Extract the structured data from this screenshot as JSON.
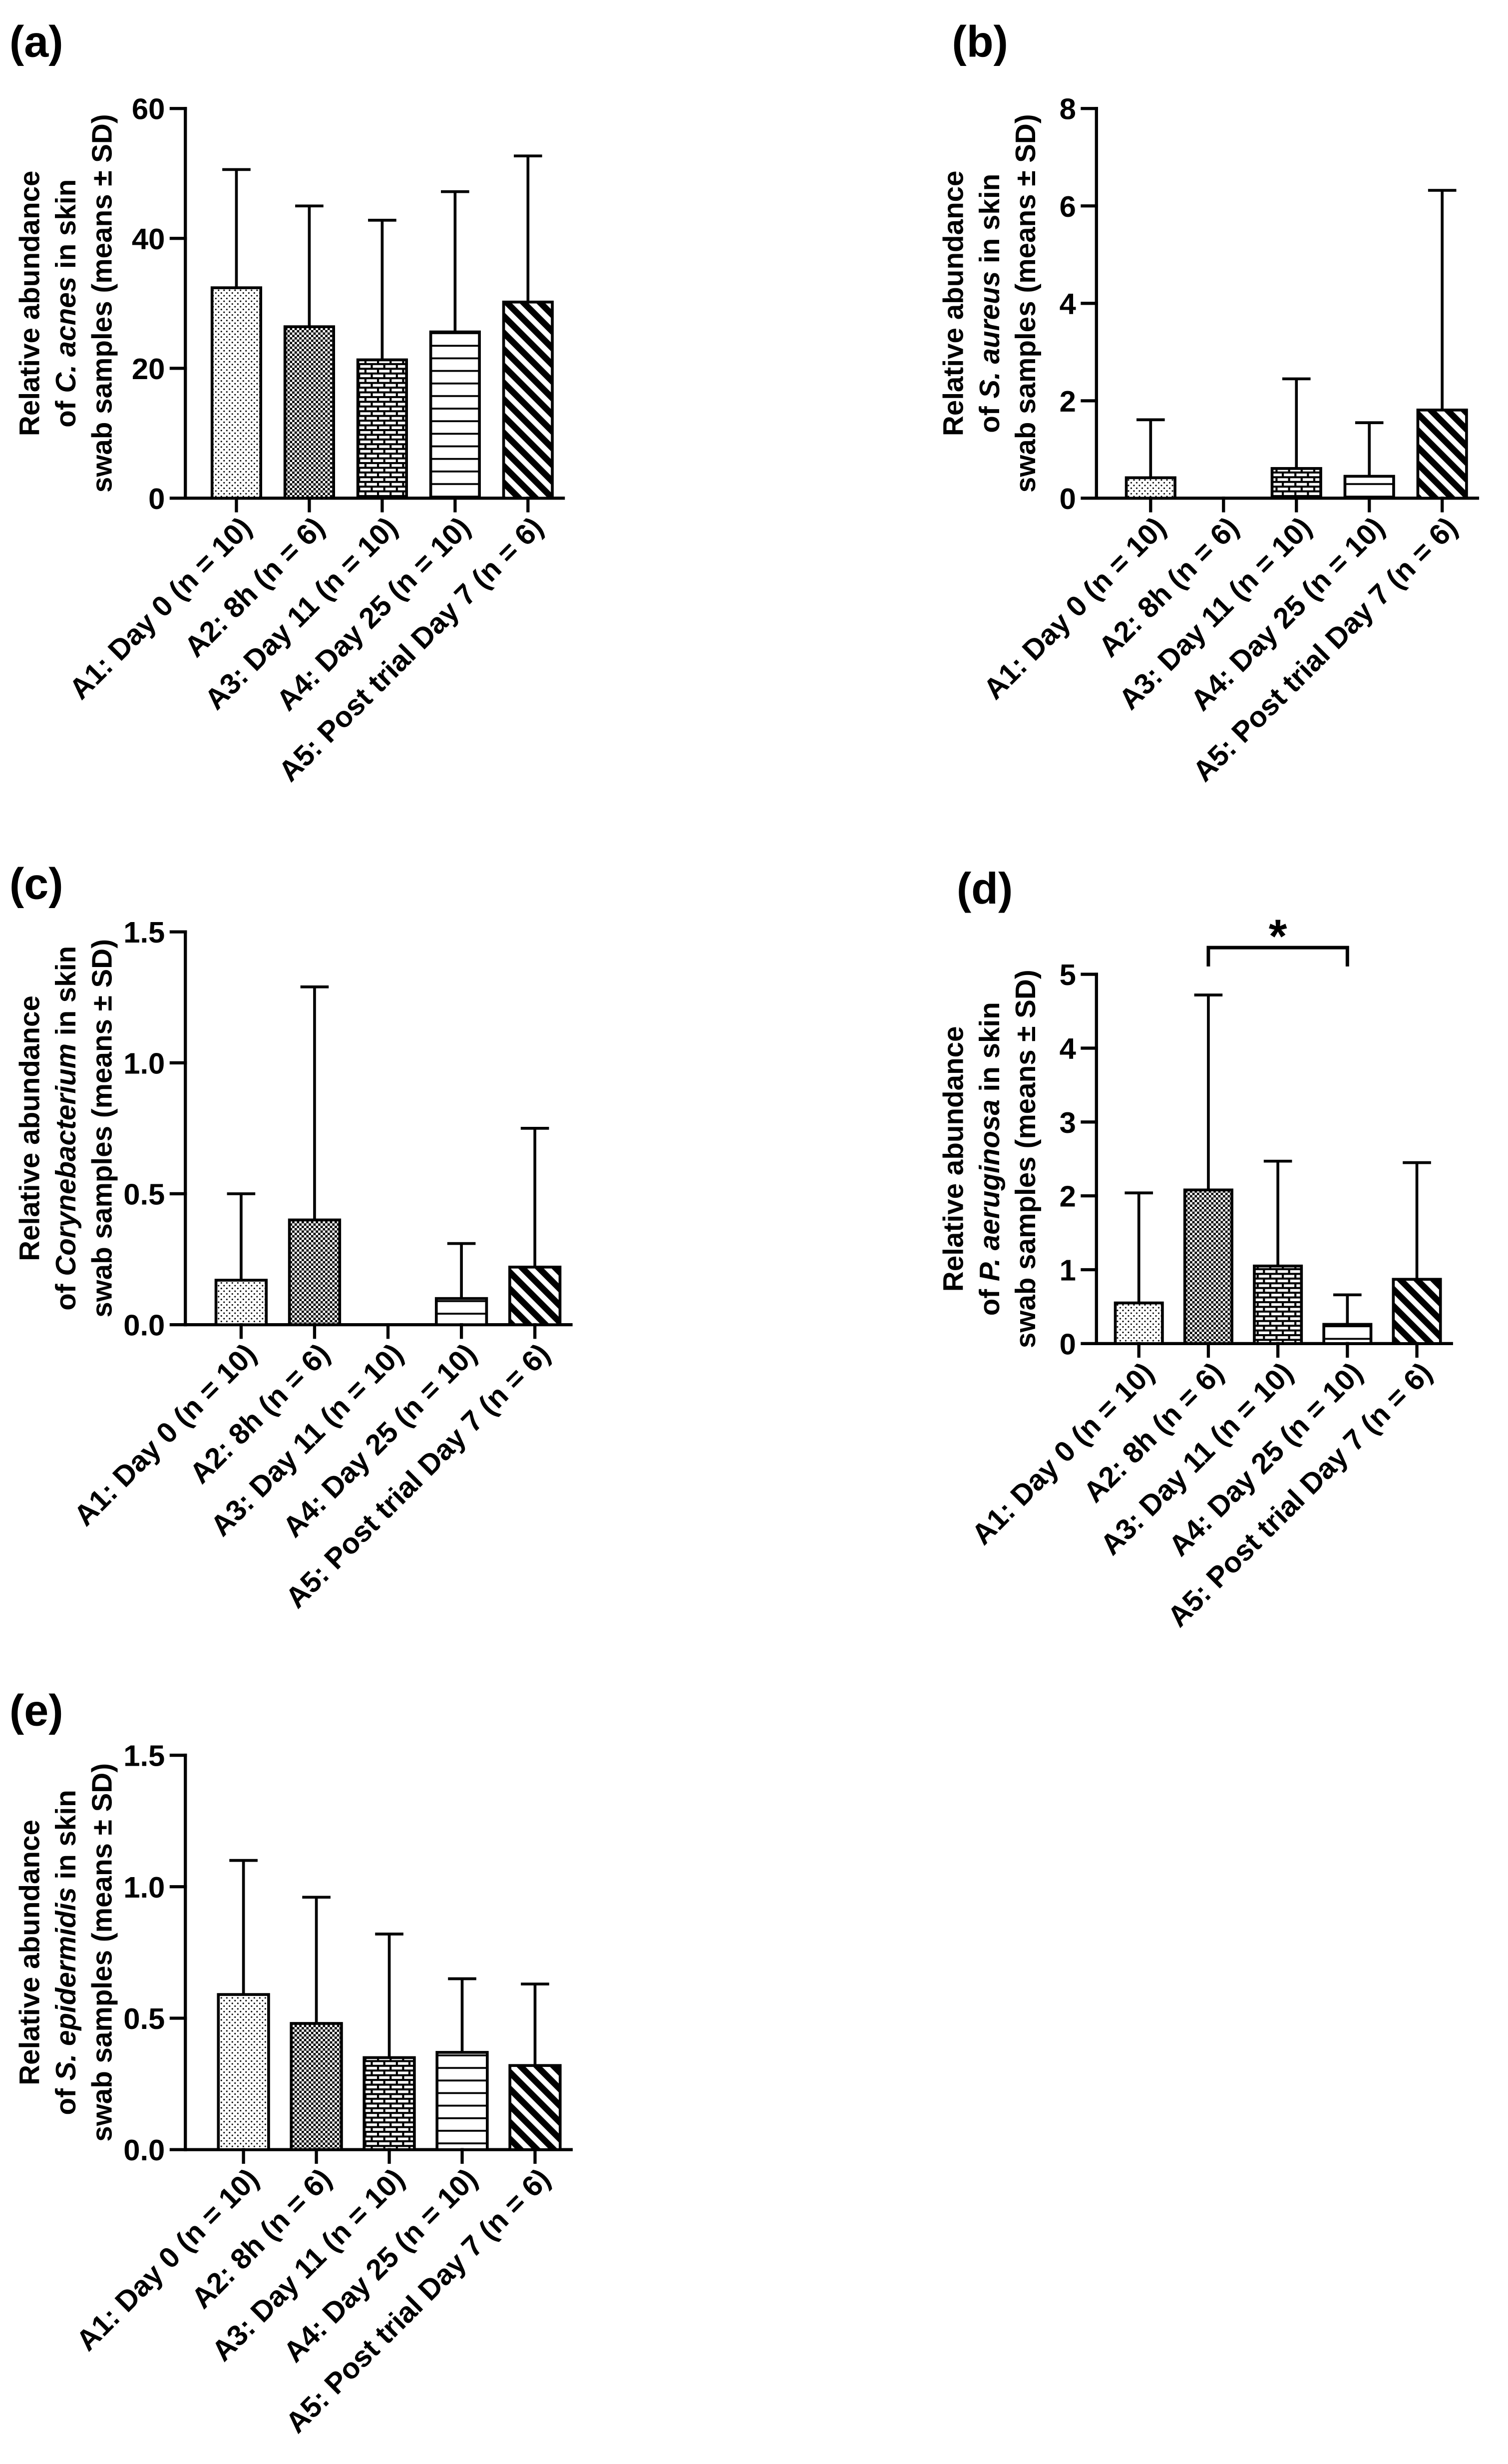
{
  "chart_data": [
    {
      "panel": "(a)",
      "type": "bar",
      "categories": [
        "A1: Day 0 (n = 10)",
        "A2: 8h (n = 6)",
        "A3: Day 11 (n = 10)",
        "A4: Day 25 (n = 10)",
        "A5: Post trial Day 7 (n = 6)"
      ],
      "values": [
        32.4,
        26.4,
        21.3,
        25.6,
        30.2
      ],
      "sd": [
        18.2,
        18.6,
        21.5,
        21.6,
        22.5
      ],
      "ylabel": [
        [
          {
            "text": "Relative abundance"
          }
        ],
        [
          {
            "text": "of "
          },
          {
            "text": "C. acnes",
            "italic": true
          },
          {
            "text": " in skin"
          }
        ],
        [
          {
            "text": "swab samples (means ± SD)"
          }
        ]
      ],
      "xlabel": "",
      "ylim": [
        0,
        60
      ],
      "yticks": [
        "0",
        "20",
        "40",
        "60"
      ]
    },
    {
      "panel": "(b)",
      "type": "bar",
      "categories": [
        "A1: Day 0 (n = 10)",
        "A2: 8h (n = 6)",
        "A3: Day 11 (n = 10)",
        "A4: Day 25 (n = 10)",
        "A5: Post trial Day 7 (n = 6)"
      ],
      "values": [
        0.42,
        0,
        0.61,
        0.45,
        1.81
      ],
      "sd": [
        1.19,
        0,
        1.84,
        1.1,
        4.51
      ],
      "ylabel": [
        [
          {
            "text": "Relative abundance"
          }
        ],
        [
          {
            "text": "of "
          },
          {
            "text": "S. aureus",
            "italic": true
          },
          {
            "text": " in skin"
          }
        ],
        [
          {
            "text": "swab samples (means ± SD)"
          }
        ]
      ],
      "xlabel": "",
      "ylim": [
        0,
        8
      ],
      "yticks": [
        "0",
        "2",
        "4",
        "6",
        "8"
      ]
    },
    {
      "panel": "(c)",
      "type": "bar",
      "categories": [
        "A1: Day 0 (n = 10)",
        "A2: 8h (n = 6)",
        "A3: Day 11 (n = 10)",
        "A4: Day 25 (n = 10)",
        "A5: Post trial Day 7 (n = 6)"
      ],
      "values": [
        0.17,
        0.4,
        0,
        0.1,
        0.22
      ],
      "sd": [
        0.33,
        0.89,
        0,
        0.21,
        0.53
      ],
      "ylabel": [
        [
          {
            "text": "Relative abundance"
          }
        ],
        [
          {
            "text": "of "
          },
          {
            "text": "Corynebacterium",
            "italic": true
          },
          {
            "text": " in skin"
          }
        ],
        [
          {
            "text": "swab samples (means ± SD)"
          }
        ]
      ],
      "xlabel": "",
      "ylim": [
        0,
        1.5
      ],
      "yticks": [
        "0.0",
        "0.5",
        "1.0",
        "1.5"
      ]
    },
    {
      "panel": "(d)",
      "type": "bar",
      "categories": [
        "A1: Day 0 (n = 10)",
        "A2: 8h (n = 6)",
        "A3: Day 11 (n = 10)",
        "A4: Day 25 (n = 10)",
        "A5: Post trial Day 7 (n = 6)"
      ],
      "values": [
        0.55,
        2.08,
        1.05,
        0.26,
        0.87
      ],
      "sd": [
        1.49,
        2.64,
        1.42,
        0.4,
        1.58
      ],
      "ylabel": [
        [
          {
            "text": "Relative abundance"
          }
        ],
        [
          {
            "text": "of "
          },
          {
            "text": "P. aeruginosa",
            "italic": true
          },
          {
            "text": " in skin"
          }
        ],
        [
          {
            "text": "swab samples (means ± SD)"
          }
        ]
      ],
      "xlabel": "",
      "ylim": [
        0,
        5
      ],
      "yticks": [
        "0",
        "1",
        "2",
        "3",
        "4",
        "5"
      ],
      "annotations": [
        {
          "text": "*",
          "from": 1,
          "to": 3
        }
      ]
    },
    {
      "panel": "(e)",
      "type": "bar",
      "categories": [
        "A1: Day 0 (n = 10)",
        "A2: 8h (n = 6)",
        "A3: Day 11 (n = 10)",
        "A4: Day 25 (n = 10)",
        "A5: Post trial Day 7 (n = 6)"
      ],
      "values": [
        0.59,
        0.48,
        0.35,
        0.37,
        0.32
      ],
      "sd": [
        0.51,
        0.48,
        0.47,
        0.28,
        0.31
      ],
      "ylabel": [
        [
          {
            "text": "Relative abundance"
          }
        ],
        [
          {
            "text": "of "
          },
          {
            "text": "S. epidermidis",
            "italic": true
          },
          {
            "text": " in skin"
          }
        ],
        [
          {
            "text": "swab samples (means ± SD)"
          }
        ]
      ],
      "xlabel": "",
      "ylim": [
        0,
        1.5
      ],
      "yticks": [
        "0.0",
        "0.5",
        "1.0",
        "1.5"
      ]
    }
  ]
}
